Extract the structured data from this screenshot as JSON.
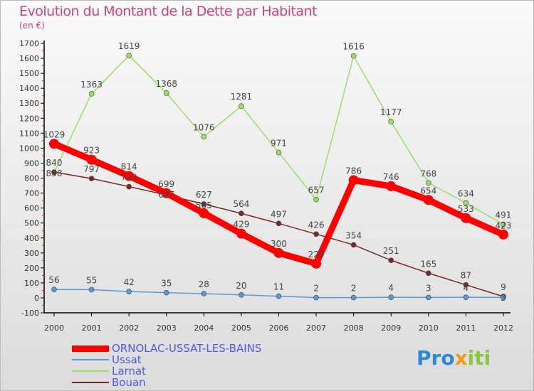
{
  "chart_data": {
    "type": "line",
    "title": "Evolution du Montant de la Dette par Habitant",
    "ylabel": "(en €)",
    "x": [
      "2000",
      "2001",
      "2002",
      "2003",
      "2004",
      "2005",
      "2006",
      "2007",
      "2008",
      "2009",
      "2010",
      "2011",
      "2012"
    ],
    "ylim": [
      -100,
      1700
    ],
    "yticks": [
      -100,
      0,
      100,
      200,
      300,
      400,
      500,
      600,
      700,
      800,
      900,
      1000,
      1100,
      1200,
      1300,
      1400,
      1500,
      1600,
      1700
    ],
    "grid": false,
    "legend_position": "bottom-left",
    "series": [
      {
        "name": "ORNOLAC-USSAT-LES-BAINS",
        "color": "#ff0000",
        "width": 9,
        "radius": 7,
        "values": [
          1029,
          923,
          814,
          699,
          565,
          429,
          300,
          229,
          786,
          746,
          654,
          533,
          423
        ]
      },
      {
        "name": "Ussat",
        "color": "#5b9bd5",
        "width": 1.5,
        "radius": 3.5,
        "values": [
          56,
          55,
          42,
          35,
          28,
          20,
          11,
          2,
          2,
          4,
          3,
          4,
          3
        ]
      },
      {
        "name": "Larnat",
        "color": "#99e066",
        "width": 1.5,
        "radius": 3.5,
        "values": [
          838,
          1363,
          1619,
          1368,
          1076,
          1281,
          971,
          657,
          1616,
          1177,
          768,
          634,
          491
        ]
      },
      {
        "name": "Bouan",
        "color": "#7a2a2a",
        "width": 1.5,
        "radius": 3.5,
        "values": [
          840,
          797,
          743,
          687,
          627,
          564,
          497,
          426,
          354,
          251,
          165,
          87,
          9
        ]
      }
    ]
  },
  "logo_text": "Proxiti"
}
